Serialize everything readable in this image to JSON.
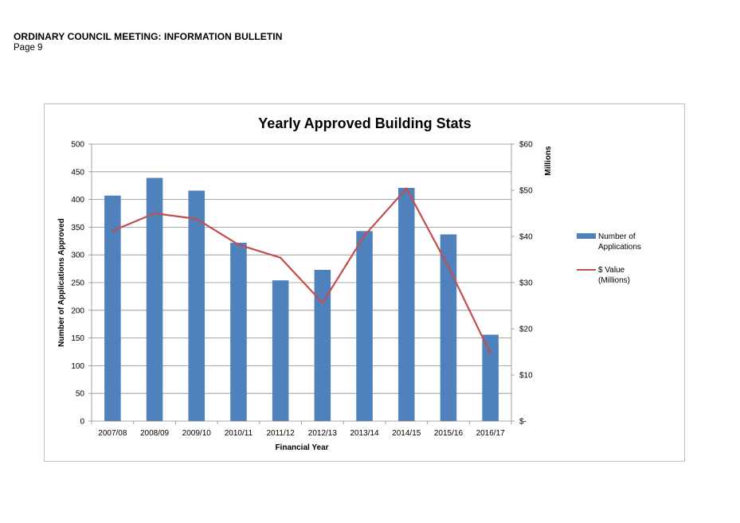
{
  "document": {
    "header_title": "ORDINARY COUNCIL MEETING: INFORMATION BULLETIN",
    "page_label": "Page 9"
  },
  "chart_data": {
    "type": "bar",
    "title": "Yearly Approved Building Stats",
    "xlabel": "Financial Year",
    "ylabel": "Number of Applications Approved",
    "y2label": "Millions",
    "categories": [
      "2007/08",
      "2008/09",
      "2009/10",
      "2010/11",
      "2011/12",
      "2012/13",
      "2013/14",
      "2014/15",
      "2015/16",
      "2016/17"
    ],
    "series": [
      {
        "name": "Number of Applications",
        "type": "bar",
        "axis": "left",
        "color": "#4f81bd",
        "values": [
          407,
          439,
          416,
          322,
          254,
          273,
          343,
          421,
          337,
          156
        ]
      },
      {
        "name": "$ Value (Millions)",
        "type": "line",
        "axis": "right",
        "color": "#c0504d",
        "values": [
          41.2,
          45.0,
          43.8,
          38.2,
          35.4,
          25.6,
          40.2,
          50.4,
          33.4,
          14.6
        ]
      }
    ],
    "ylim": [
      0,
      500
    ],
    "yticks": [
      0,
      50,
      100,
      150,
      200,
      250,
      300,
      350,
      400,
      450,
      500
    ],
    "y2lim": [
      0,
      60
    ],
    "y2ticks": [
      0,
      10,
      20,
      30,
      40,
      50,
      60
    ],
    "y2ticklabels": [
      "$-",
      "$10",
      "$20",
      "$30",
      "$40",
      "$50",
      "$60"
    ],
    "legend": {
      "position": "right",
      "bar_lines": [
        "Number of",
        "Applications"
      ],
      "line_lines": [
        "$ Value",
        "(Millions)"
      ]
    },
    "grid": true
  }
}
